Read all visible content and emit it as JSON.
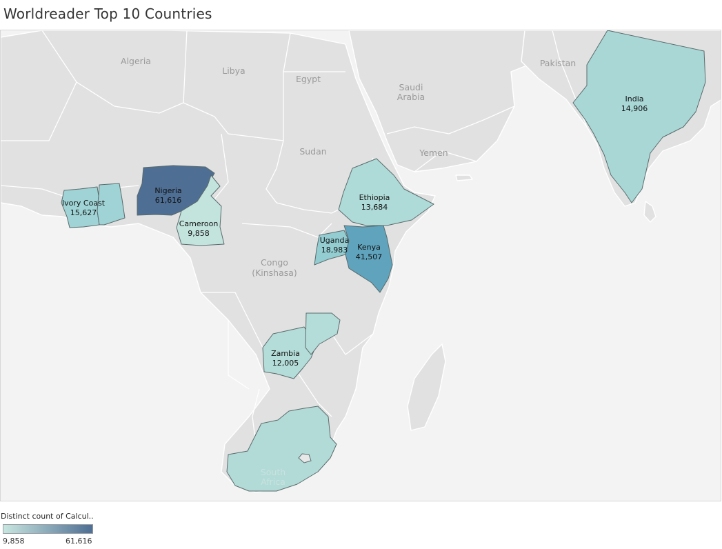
{
  "title": "Worldreader Top 10 Countries",
  "map": {
    "background_labels": [
      {
        "id": "algeria",
        "lines": [
          "Algeria"
        ]
      },
      {
        "id": "libya",
        "lines": [
          "Libya"
        ]
      },
      {
        "id": "egypt",
        "lines": [
          "Egypt"
        ]
      },
      {
        "id": "saudi",
        "lines": [
          "Saudi",
          "Arabia"
        ]
      },
      {
        "id": "pakistan",
        "lines": [
          "Pakistan"
        ]
      },
      {
        "id": "sudan",
        "lines": [
          "Sudan"
        ]
      },
      {
        "id": "yemen",
        "lines": [
          "Yemen"
        ]
      },
      {
        "id": "congo",
        "lines": [
          "Congo",
          "(Kinshasa)"
        ]
      }
    ],
    "countries": [
      {
        "id": "nigeria",
        "name": "Nigeria",
        "value": 61616,
        "value_label": "61,616",
        "color": "#4e6e94"
      },
      {
        "id": "kenya",
        "name": "Kenya",
        "value": 41507,
        "value_label": "41,507",
        "color": "#5fa3bc"
      },
      {
        "id": "uganda",
        "name": "Uganda",
        "value": 18983,
        "value_label": "18,983",
        "color": "#93cdd2"
      },
      {
        "id": "ivory-coast",
        "name": "Ivory Coast",
        "value": 15627,
        "value_label": "15,627",
        "color": "#a0d3d5"
      },
      {
        "id": "india",
        "name": "India",
        "value": 14906,
        "value_label": "14,906",
        "color": "#a8d7d6"
      },
      {
        "id": "ethiopia",
        "name": "Ethiopia",
        "value": 13684,
        "value_label": "13,684",
        "color": "#aedad7"
      },
      {
        "id": "zambia",
        "name": "Zambia",
        "value": 12005,
        "value_label": "12,005",
        "color": "#b4dcd8"
      },
      {
        "id": "cameroon",
        "name": "Cameroon",
        "value": 9858,
        "value_label": "9,858",
        "color": "#c3e3dd"
      },
      {
        "id": "ghana",
        "name": "",
        "value": null,
        "value_label": "",
        "color": "#a0d3d5"
      },
      {
        "id": "malawi",
        "name": "",
        "value": null,
        "value_label": "",
        "color": "#b4dcd8"
      },
      {
        "id": "south-africa",
        "name": "South Africa",
        "value": null,
        "value_label": "",
        "color": "#b2dbd7"
      }
    ]
  },
  "legend": {
    "title": "Distinct count of Calcul..",
    "min_label": "9,858",
    "max_label": "61,616",
    "color_min": "#c8e6df",
    "color_max": "#4e6e94"
  }
}
